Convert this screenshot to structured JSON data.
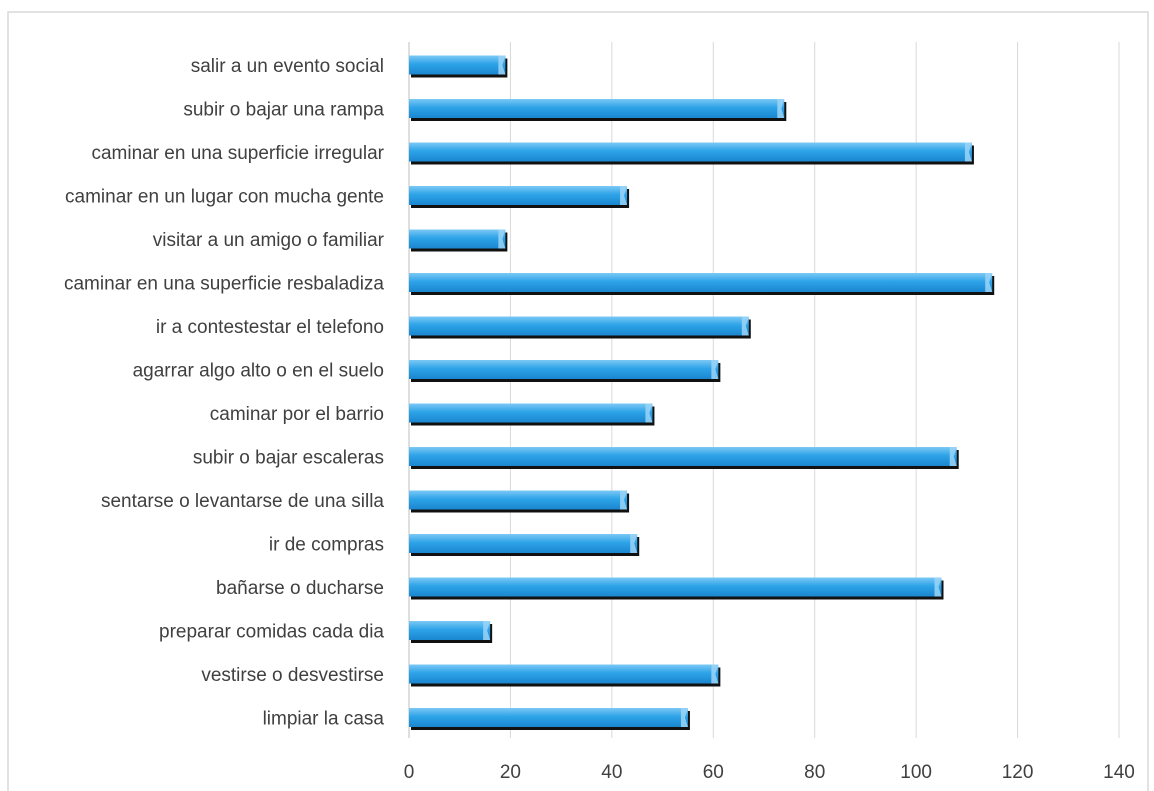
{
  "chart_data": {
    "type": "bar",
    "orientation": "horizontal",
    "title": "",
    "xlabel": "",
    "ylabel": "",
    "categories": [
      "salir a un evento social",
      "subir o bajar una rampa",
      "caminar en una superficie irregular",
      "caminar en un lugar con mucha gente",
      "visitar a un amigo o familiar",
      "caminar en una superficie resbaladiza",
      "ir a contestestar  el telefono",
      "agarrar algo alto o en el suelo",
      "caminar por el barrio",
      "subir o bajar escaleras",
      "sentarse o levantarse de una silla",
      "ir de compras",
      "bañarse o ducharse",
      "preparar comidas cada dia",
      "vestirse o desvestirse",
      "limpiar la casa"
    ],
    "values": [
      19,
      74,
      111,
      43,
      19,
      115,
      67,
      61,
      48,
      108,
      43,
      45,
      105,
      16,
      61,
      55
    ],
    "xlim": [
      0,
      140
    ],
    "xticks": [
      0,
      20,
      40,
      60,
      80,
      100,
      120,
      140
    ],
    "grid": true,
    "legend": "none",
    "bar_color": "#2da3e8",
    "bar_highlight_color": "#9bd4f7",
    "bar_shadow_color": "#111111"
  }
}
